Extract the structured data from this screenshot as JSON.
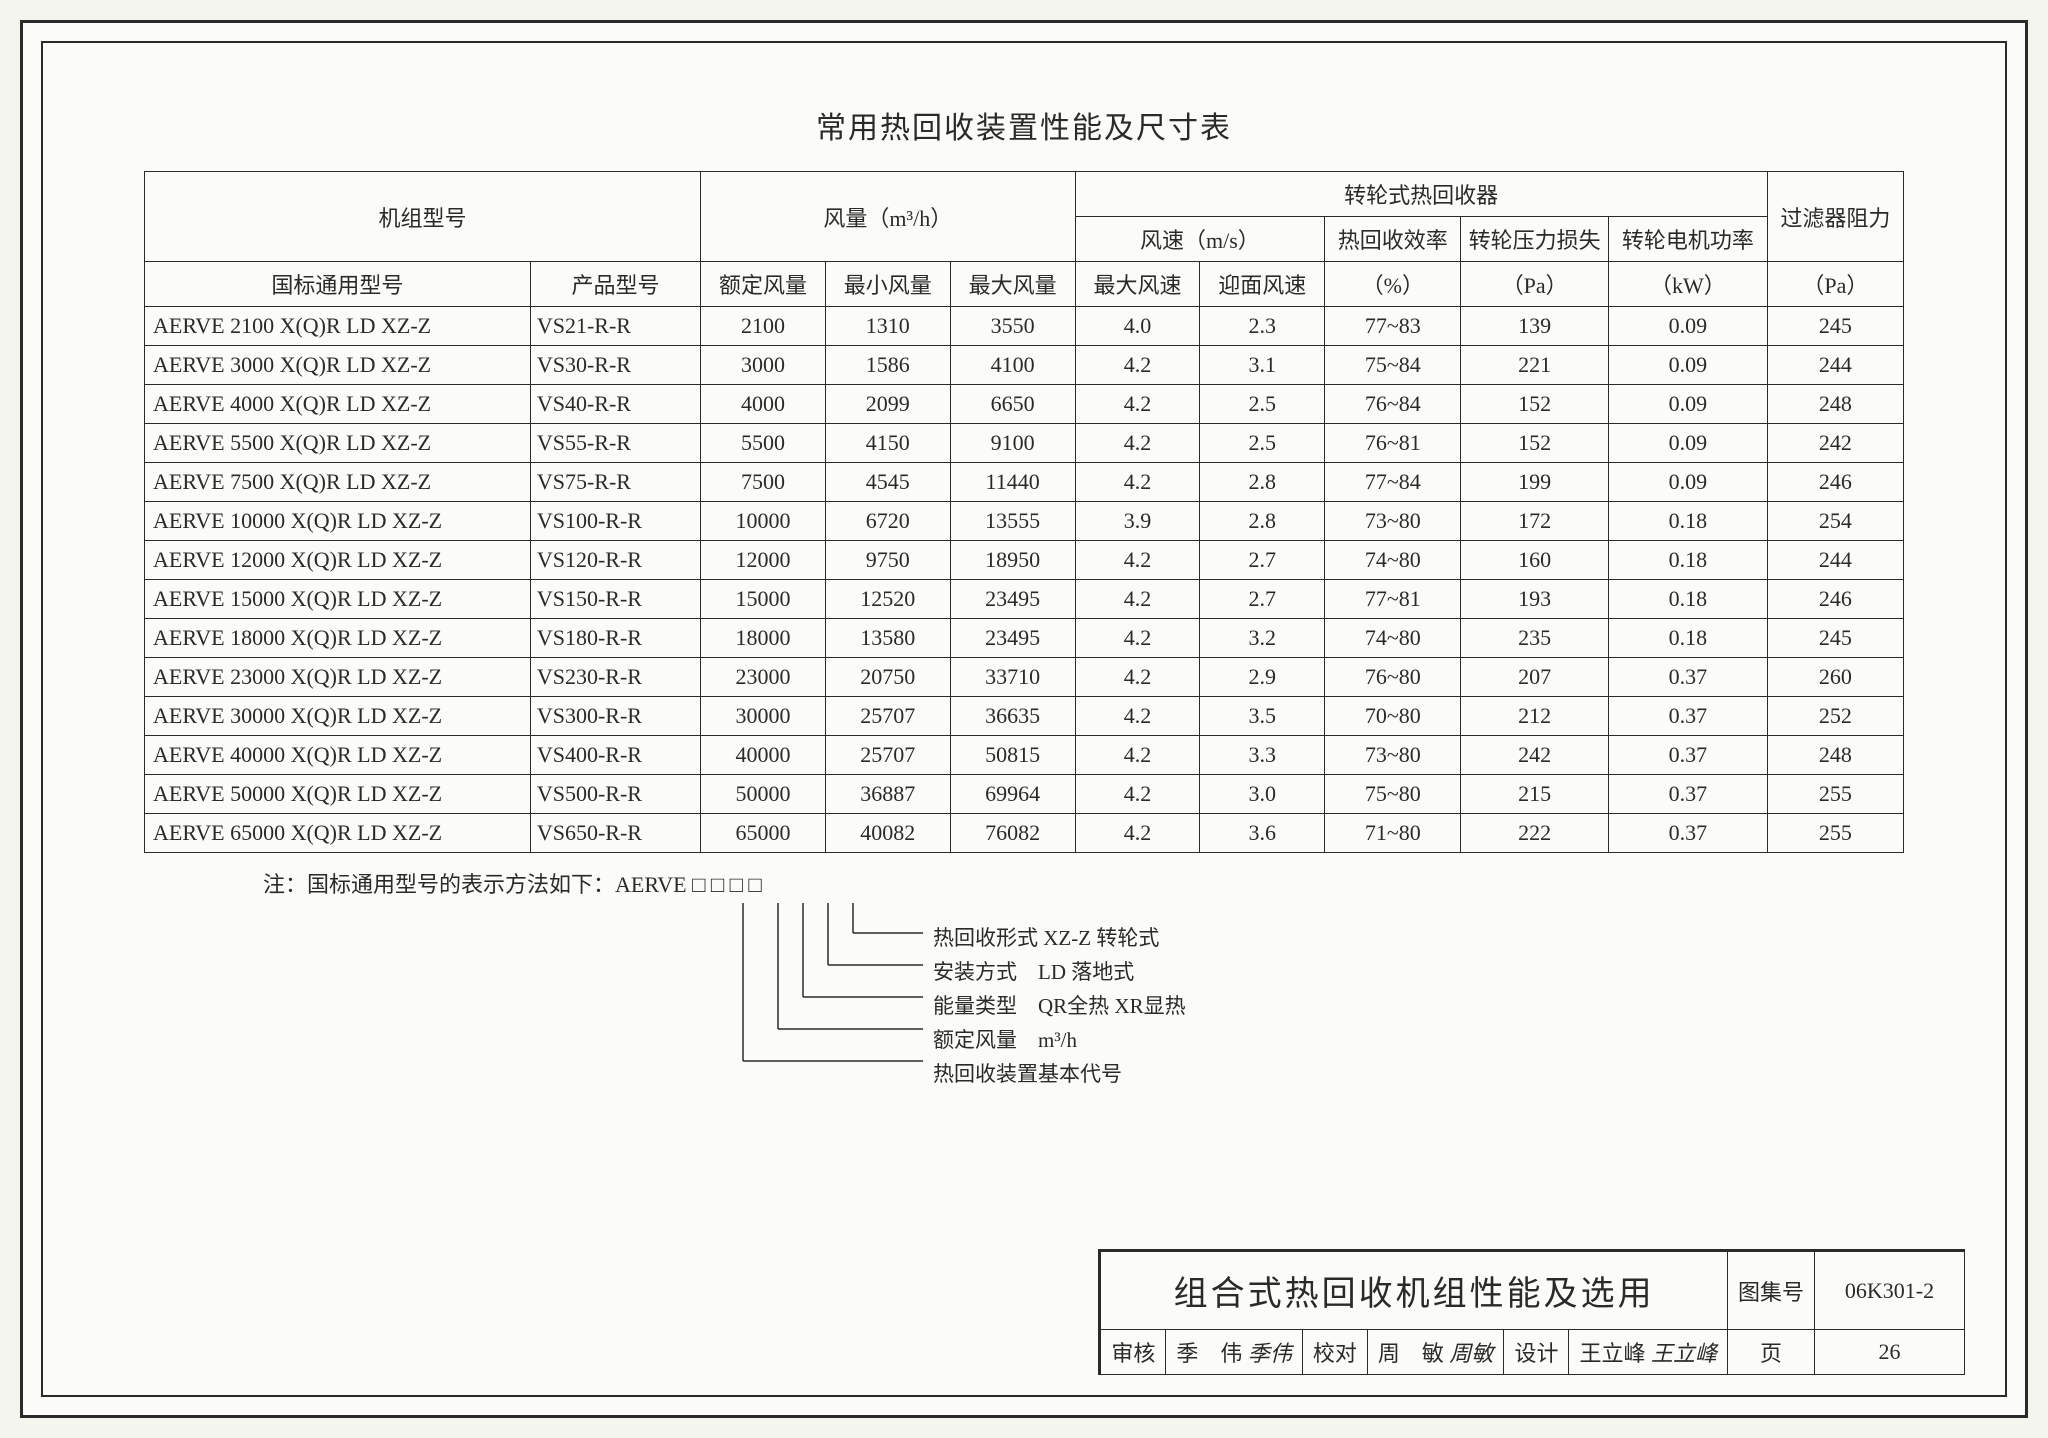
{
  "title": "常用热回收装置性能及尺寸表",
  "headers": {
    "model_group": "机组型号",
    "airflow_group": "风量（m³/h）",
    "wheel_group": "转轮式热回收器",
    "filter": "过滤器阻力",
    "gb_model": "国标通用型号",
    "prod_model": "产品型号",
    "rated": "额定风量",
    "min": "最小风量",
    "max": "最大风量",
    "velocity_group": "风速（m/s）",
    "eff": "热回收效率",
    "ploss": "转轮压力损失",
    "motor": "转轮电机功率",
    "vmax": "最大风速",
    "vface": "迎面风速",
    "pct": "（%）",
    "pa": "（Pa）",
    "kw": "（kW）",
    "pa2": "（Pa）"
  },
  "rows": [
    {
      "gb": "AERVE 2100 X(Q)R LD XZ-Z",
      "pm": "VS21-R-R",
      "rated": "2100",
      "min": "1310",
      "max": "3550",
      "vmax": "4.0",
      "vface": "2.3",
      "eff": "77~83",
      "ploss": "139",
      "kw": "0.09",
      "filter": "245"
    },
    {
      "gb": "AERVE 3000 X(Q)R LD XZ-Z",
      "pm": "VS30-R-R",
      "rated": "3000",
      "min": "1586",
      "max": "4100",
      "vmax": "4.2",
      "vface": "3.1",
      "eff": "75~84",
      "ploss": "221",
      "kw": "0.09",
      "filter": "244"
    },
    {
      "gb": "AERVE 4000 X(Q)R LD XZ-Z",
      "pm": "VS40-R-R",
      "rated": "4000",
      "min": "2099",
      "max": "6650",
      "vmax": "4.2",
      "vface": "2.5",
      "eff": "76~84",
      "ploss": "152",
      "kw": "0.09",
      "filter": "248"
    },
    {
      "gb": "AERVE 5500 X(Q)R LD XZ-Z",
      "pm": "VS55-R-R",
      "rated": "5500",
      "min": "4150",
      "max": "9100",
      "vmax": "4.2",
      "vface": "2.5",
      "eff": "76~81",
      "ploss": "152",
      "kw": "0.09",
      "filter": "242"
    },
    {
      "gb": "AERVE 7500 X(Q)R LD XZ-Z",
      "pm": "VS75-R-R",
      "rated": "7500",
      "min": "4545",
      "max": "11440",
      "vmax": "4.2",
      "vface": "2.8",
      "eff": "77~84",
      "ploss": "199",
      "kw": "0.09",
      "filter": "246"
    },
    {
      "gb": "AERVE 10000 X(Q)R LD XZ-Z",
      "pm": "VS100-R-R",
      "rated": "10000",
      "min": "6720",
      "max": "13555",
      "vmax": "3.9",
      "vface": "2.8",
      "eff": "73~80",
      "ploss": "172",
      "kw": "0.18",
      "filter": "254"
    },
    {
      "gb": "AERVE 12000 X(Q)R LD XZ-Z",
      "pm": "VS120-R-R",
      "rated": "12000",
      "min": "9750",
      "max": "18950",
      "vmax": "4.2",
      "vface": "2.7",
      "eff": "74~80",
      "ploss": "160",
      "kw": "0.18",
      "filter": "244"
    },
    {
      "gb": "AERVE 15000 X(Q)R LD XZ-Z",
      "pm": "VS150-R-R",
      "rated": "15000",
      "min": "12520",
      "max": "23495",
      "vmax": "4.2",
      "vface": "2.7",
      "eff": "77~81",
      "ploss": "193",
      "kw": "0.18",
      "filter": "246"
    },
    {
      "gb": "AERVE 18000 X(Q)R LD XZ-Z",
      "pm": "VS180-R-R",
      "rated": "18000",
      "min": "13580",
      "max": "23495",
      "vmax": "4.2",
      "vface": "3.2",
      "eff": "74~80",
      "ploss": "235",
      "kw": "0.18",
      "filter": "245"
    },
    {
      "gb": "AERVE 23000 X(Q)R LD XZ-Z",
      "pm": "VS230-R-R",
      "rated": "23000",
      "min": "20750",
      "max": "33710",
      "vmax": "4.2",
      "vface": "2.9",
      "eff": "76~80",
      "ploss": "207",
      "kw": "0.37",
      "filter": "260"
    },
    {
      "gb": "AERVE 30000 X(Q)R LD XZ-Z",
      "pm": "VS300-R-R",
      "rated": "30000",
      "min": "25707",
      "max": "36635",
      "vmax": "4.2",
      "vface": "3.5",
      "eff": "70~80",
      "ploss": "212",
      "kw": "0.37",
      "filter": "252"
    },
    {
      "gb": "AERVE 40000 X(Q)R LD XZ-Z",
      "pm": "VS400-R-R",
      "rated": "40000",
      "min": "25707",
      "max": "50815",
      "vmax": "4.2",
      "vface": "3.3",
      "eff": "73~80",
      "ploss": "242",
      "kw": "0.37",
      "filter": "248"
    },
    {
      "gb": "AERVE 50000 X(Q)R LD XZ-Z",
      "pm": "VS500-R-R",
      "rated": "50000",
      "min": "36887",
      "max": "69964",
      "vmax": "4.2",
      "vface": "3.0",
      "eff": "75~80",
      "ploss": "215",
      "kw": "0.37",
      "filter": "255"
    },
    {
      "gb": "AERVE 65000 X(Q)R LD XZ-Z",
      "pm": "VS650-R-R",
      "rated": "65000",
      "min": "40082",
      "max": "76082",
      "vmax": "4.2",
      "vface": "3.6",
      "eff": "71~80",
      "ploss": "222",
      "kw": "0.37",
      "filter": "255"
    }
  ],
  "note": "注：国标通用型号的表示方法如下：AERVE  □ □ □ □",
  "legend": {
    "l1": "热回收形式 XZ-Z 转轮式",
    "l2": "安装方式　LD 落地式",
    "l3": "能量类型　QR全热 XR显热",
    "l4": "额定风量　m³/h",
    "l5": "热回收装置基本代号"
  },
  "titleblock": {
    "main": "组合式热回收机组性能及选用",
    "atlas_label": "图集号",
    "atlas_no": "06K301-2",
    "shenhe": "审核",
    "shenhe_name": "季　伟",
    "shenhe_sig": "季伟",
    "jiaodui": "校对",
    "jiaodui_name": "周　敏",
    "jiaodui_sig": "周敏",
    "sheji": "设计",
    "sheji_name": "王立峰",
    "sheji_sig": "王立峰",
    "page_label": "页",
    "page_no": "26"
  },
  "colwidths": [
    "340",
    "150",
    "110",
    "110",
    "110",
    "110",
    "110",
    "120",
    "130",
    "140",
    "120"
  ]
}
